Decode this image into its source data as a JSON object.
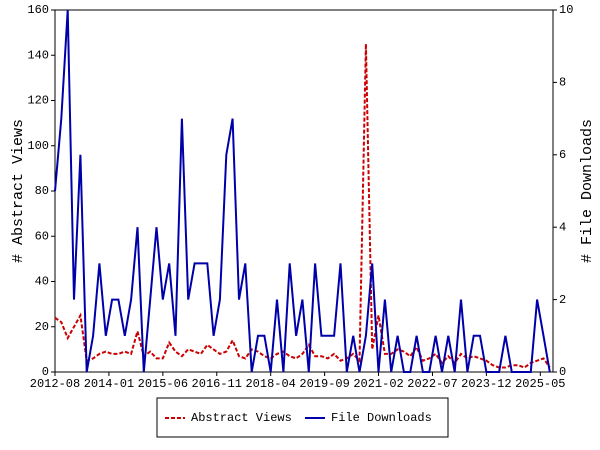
{
  "chart_data": {
    "type": "line",
    "y_label": "# Abstract Views",
    "y2_label": "# File Downloads",
    "x": [
      "2012-08",
      "2012-10",
      "2012-12",
      "2013-02",
      "2013-04",
      "2013-06",
      "2013-08",
      "2013-10",
      "2013-12",
      "2014-02",
      "2014-04",
      "2014-06",
      "2014-08",
      "2014-10",
      "2014-12",
      "2015-02",
      "2015-04",
      "2015-06",
      "2015-08",
      "2015-10",
      "2015-12",
      "2016-02",
      "2016-04",
      "2016-06",
      "2016-08",
      "2016-10",
      "2016-12",
      "2017-02",
      "2017-04",
      "2017-06",
      "2017-08",
      "2017-10",
      "2017-12",
      "2018-02",
      "2018-04",
      "2018-06",
      "2018-08",
      "2018-10",
      "2018-12",
      "2019-02",
      "2019-04",
      "2019-06",
      "2019-08",
      "2019-10",
      "2019-12",
      "2020-02",
      "2020-04",
      "2020-06",
      "2020-08",
      "2020-10",
      "2020-12",
      "2021-02",
      "2021-04",
      "2021-06",
      "2021-08",
      "2021-10",
      "2021-12",
      "2022-02",
      "2022-04",
      "2022-06",
      "2022-08",
      "2022-10",
      "2022-12",
      "2023-02",
      "2023-04",
      "2023-06",
      "2023-08",
      "2023-10",
      "2023-12",
      "2024-02",
      "2024-04",
      "2024-06",
      "2024-08",
      "2024-10",
      "2024-12",
      "2025-02",
      "2025-04",
      "2025-06",
      "2025-08"
    ],
    "series": [
      {
        "name": "Abstract Views",
        "color": "#cc0000",
        "style": "dashed",
        "axis": "y",
        "values": [
          24,
          22,
          15,
          20,
          25,
          5,
          6,
          8,
          9,
          8,
          8,
          9,
          8,
          18,
          7,
          9,
          6,
          6,
          13,
          9,
          7,
          10,
          9,
          8,
          12,
          10,
          8,
          9,
          14,
          7,
          6,
          10,
          9,
          7,
          6,
          8,
          9,
          7,
          6,
          8,
          12,
          7,
          7,
          6,
          8,
          5,
          6,
          8,
          5,
          145,
          10,
          25,
          8,
          8,
          10,
          9,
          7,
          11,
          5,
          6,
          8,
          4,
          7,
          4,
          8,
          6,
          7,
          6,
          5,
          3,
          2,
          2,
          3,
          3,
          2,
          4,
          5,
          6,
          2
        ]
      },
      {
        "name": "File Downloads",
        "color": "#0000aa",
        "style": "solid",
        "axis": "y2",
        "values": [
          5,
          7,
          10,
          2,
          6,
          0,
          1,
          3,
          1,
          2,
          2,
          1,
          2,
          4,
          0,
          2,
          4,
          2,
          3,
          1,
          7,
          2,
          3,
          3,
          3,
          1,
          2,
          6,
          7,
          2,
          3,
          0,
          1,
          1,
          0,
          2,
          0,
          3,
          1,
          2,
          0,
          3,
          1,
          1,
          1,
          3,
          0,
          1,
          0,
          1,
          3,
          0,
          2,
          0,
          1,
          0,
          0,
          1,
          0,
          0,
          1,
          0,
          1,
          0,
          2,
          0,
          1,
          1,
          0,
          0,
          0,
          1,
          0,
          0,
          0,
          0,
          2,
          1,
          0
        ]
      }
    ],
    "xlim": [
      "2012-08",
      "2025-09"
    ],
    "xticks": [
      "2012-08",
      "2014-01",
      "2015-06",
      "2016-11",
      "2018-04",
      "2019-09",
      "2021-02",
      "2022-07",
      "2023-12",
      "2025-05"
    ],
    "ylim": [
      0,
      160
    ],
    "yticks": [
      0,
      20,
      40,
      60,
      80,
      100,
      120,
      140,
      160
    ],
    "y2lim": [
      0,
      10
    ],
    "y2ticks": [
      0,
      2,
      4,
      6,
      8,
      10
    ],
    "legend": "bottom"
  }
}
